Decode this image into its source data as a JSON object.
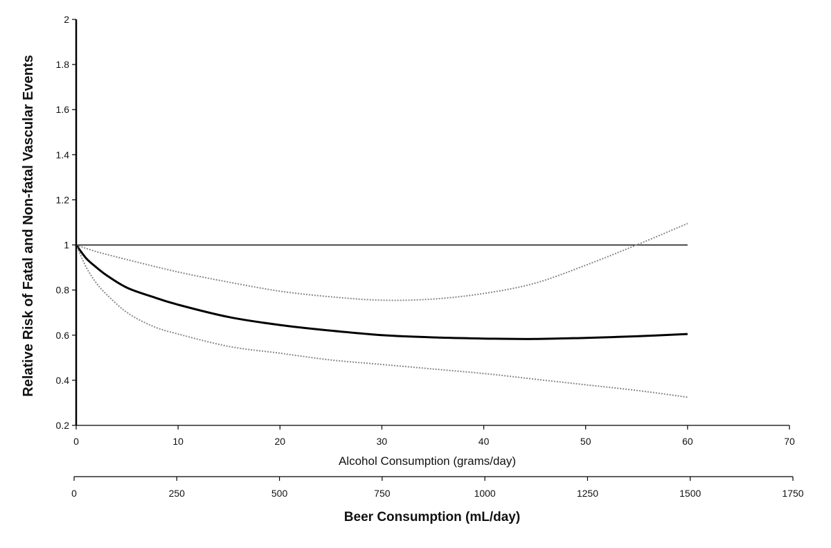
{
  "chart_data": {
    "type": "line",
    "ylabel": "Relative Risk of Fatal and Non-fatal Vascular Events",
    "xlabel": "Alcohol Consumption (grams/day)",
    "x2label": "Beer Consumption (mL/day)",
    "xlim": [
      0,
      70
    ],
    "ylim": [
      0.2,
      2
    ],
    "x2lim": [
      0,
      1750
    ],
    "x_ticks": [
      "0",
      "10",
      "20",
      "30",
      "40",
      "50",
      "60",
      "70"
    ],
    "y_ticks": [
      "0.2",
      "0.4",
      "0.6",
      "0.8",
      "1",
      "1.2",
      "1.4",
      "1.6",
      "1.8",
      "2"
    ],
    "x2_ticks": [
      "0",
      "250",
      "500",
      "750",
      "1000",
      "1250",
      "1500",
      "1750"
    ],
    "grid": false,
    "series": [
      {
        "style": "reference",
        "color": "#111111",
        "x": [
          0,
          60
        ],
        "y": [
          1.0,
          1.0
        ]
      },
      {
        "style": "solid-thick",
        "color": "#000000",
        "x": [
          0,
          1,
          2,
          3,
          5,
          7.5,
          10,
          15,
          20,
          25,
          30,
          35,
          40,
          45,
          50,
          55,
          60
        ],
        "y": [
          1.0,
          0.94,
          0.9,
          0.865,
          0.81,
          0.77,
          0.735,
          0.68,
          0.645,
          0.62,
          0.6,
          0.59,
          0.585,
          0.583,
          0.588,
          0.595,
          0.605
        ]
      },
      {
        "style": "dotted",
        "color": "#888888",
        "x": [
          0,
          2,
          5,
          10,
          15,
          20,
          25,
          30,
          35,
          40,
          45,
          50,
          55,
          60
        ],
        "y": [
          1.0,
          0.97,
          0.935,
          0.88,
          0.835,
          0.795,
          0.77,
          0.755,
          0.76,
          0.785,
          0.83,
          0.91,
          1.0,
          1.095
        ]
      },
      {
        "style": "dotted",
        "color": "#888888",
        "x": [
          0,
          1,
          2,
          3,
          5,
          7.5,
          10,
          15,
          20,
          25,
          30,
          35,
          40,
          45,
          50,
          55,
          60
        ],
        "y": [
          1.0,
          0.9,
          0.83,
          0.78,
          0.7,
          0.64,
          0.605,
          0.55,
          0.52,
          0.49,
          0.47,
          0.45,
          0.43,
          0.405,
          0.38,
          0.355,
          0.325
        ]
      }
    ]
  }
}
